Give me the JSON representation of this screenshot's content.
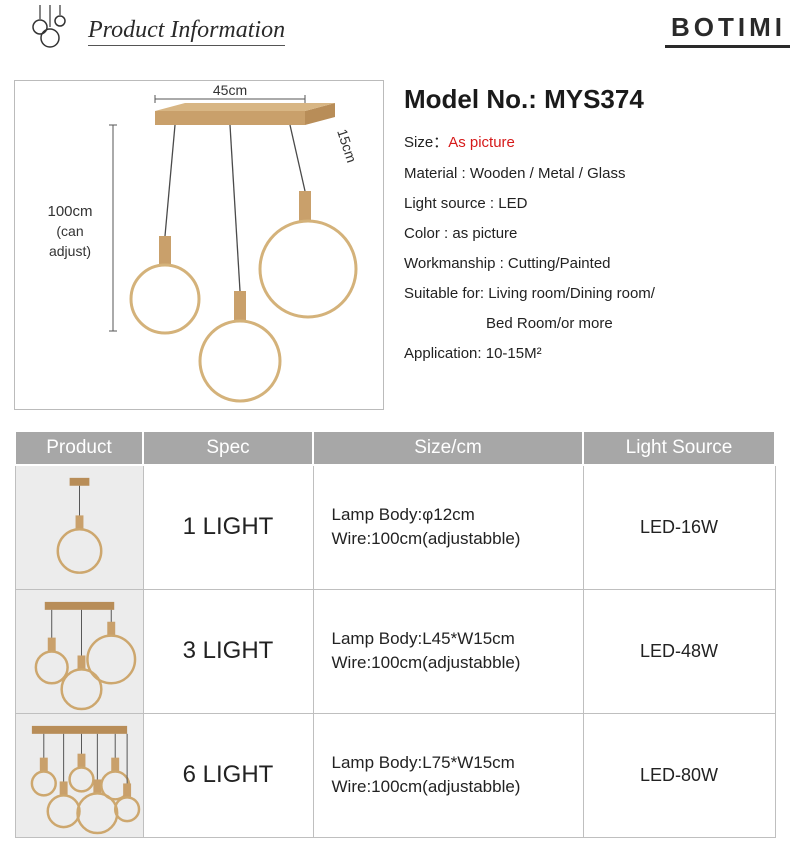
{
  "header": {
    "title": "Product Information",
    "brand": "BOTIMI"
  },
  "diagram": {
    "top_width": "45cm",
    "top_depth": "15cm",
    "drop": "100cm",
    "drop_note": "(can adjust)",
    "mount_color": "#c9a06b",
    "wire_color": "#4a4a4a",
    "ring_color": "#d4b27a"
  },
  "details": {
    "model_label": "Model No.: ",
    "model_value": "MYS374",
    "size_label": "Size：",
    "size_value": "As picture",
    "material_label": "Material :",
    "material_value": "  Wooden / Metal / Glass",
    "light_source_label": "Light source :",
    "light_source_value": "  LED",
    "color_label": "Color :",
    "color_value": "   as picture",
    "workmanship_label": "Workmanship :",
    "workmanship_value": "  Cutting/Painted",
    "suitable_label": "Suitable for:",
    "suitable_value": "  Living room/Dining room/",
    "suitable_cont": "Bed Room/or more",
    "application_label": "Application:",
    "application_value": "  10-15M²"
  },
  "table": {
    "headers": {
      "product": "Product",
      "spec": "Spec",
      "size": "Size/cm",
      "light_source": "Light Source"
    },
    "rows": [
      {
        "rings": 1,
        "spec": "1 LIGHT",
        "size_l1": "Lamp Body:φ12cm",
        "size_l2": "Wire:100cm(adjustabble)",
        "ls": "LED-16W"
      },
      {
        "rings": 3,
        "spec": "3 LIGHT",
        "size_l1": "Lamp Body:L45*W15cm",
        "size_l2": "Wire:100cm(adjustabble)",
        "ls": "LED-48W"
      },
      {
        "rings": 6,
        "spec": "6 LIGHT",
        "size_l1": "Lamp Body:L75*W15cm",
        "size_l2": "Wire:100cm(adjustabble)",
        "ls": "LED-80W"
      }
    ]
  },
  "colors": {
    "header_bg": "#a7a7a7",
    "header_fg": "#ffffff",
    "cell_border": "#bfbfbf",
    "thumb_bg": "#ececec",
    "text": "#222222",
    "red": "#d61a1a"
  }
}
